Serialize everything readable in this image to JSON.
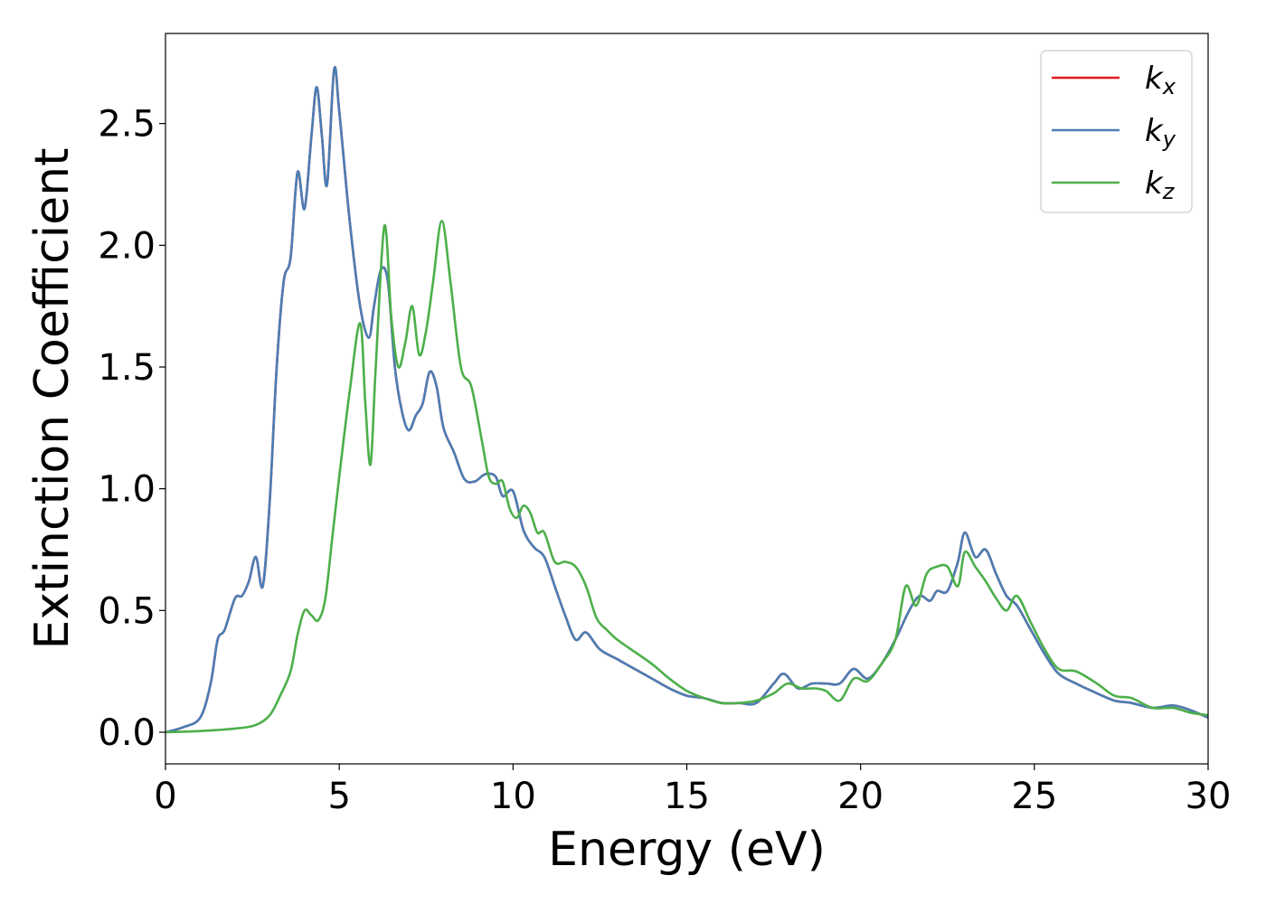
{
  "chart_data": {
    "type": "line",
    "title": "",
    "xlabel": "Energy (eV)",
    "ylabel": "Extinction Coefficient",
    "xlim": [
      0,
      30
    ],
    "ylim": [
      -0.13,
      2.87
    ],
    "xticks": [
      0,
      5,
      10,
      15,
      20,
      25,
      30
    ],
    "xtick_labels": [
      "0",
      "5",
      "10",
      "15",
      "20",
      "25",
      "30"
    ],
    "yticks": [
      0.0,
      0.5,
      1.0,
      1.5,
      2.0,
      2.5
    ],
    "ytick_labels": [
      "0.0",
      "0.5",
      "1.0",
      "1.5",
      "2.0",
      "2.5"
    ],
    "grid": false,
    "legend_position": "top-right",
    "series": [
      {
        "name": "k_x",
        "legend_main": "k",
        "legend_sub": "x",
        "color": "#e41a1c",
        "x": [
          0,
          0.5,
          1.0,
          1.3,
          1.5,
          1.7,
          2.0,
          2.2,
          2.4,
          2.6,
          2.8,
          3.0,
          3.2,
          3.4,
          3.6,
          3.8,
          4.0,
          4.2,
          4.35,
          4.5,
          4.65,
          4.85,
          5.0,
          5.3,
          5.6,
          5.85,
          6.0,
          6.2,
          6.4,
          6.6,
          6.8,
          7.0,
          7.2,
          7.4,
          7.6,
          7.8,
          8.0,
          8.3,
          8.6,
          8.9,
          9.2,
          9.5,
          9.7,
          10.0,
          10.3,
          10.6,
          10.9,
          11.2,
          11.5,
          11.8,
          12.1,
          12.5,
          13.0,
          13.5,
          14.0,
          14.5,
          15.0,
          15.5,
          16.0,
          16.5,
          17.0,
          17.5,
          17.8,
          18.2,
          18.6,
          19.0,
          19.4,
          19.8,
          20.2,
          20.6,
          21.0,
          21.4,
          21.7,
          22.0,
          22.2,
          22.5,
          22.8,
          23.0,
          23.3,
          23.6,
          23.9,
          24.2,
          24.5,
          24.9,
          25.3,
          25.7,
          26.2,
          26.8,
          27.3,
          27.8,
          28.4,
          29.0,
          29.5,
          30.0
        ],
        "values": [
          0.0,
          0.02,
          0.06,
          0.2,
          0.38,
          0.42,
          0.55,
          0.56,
          0.62,
          0.72,
          0.6,
          0.95,
          1.5,
          1.85,
          1.95,
          2.3,
          2.15,
          2.45,
          2.65,
          2.45,
          2.25,
          2.72,
          2.55,
          2.1,
          1.75,
          1.62,
          1.75,
          1.9,
          1.85,
          1.5,
          1.32,
          1.24,
          1.3,
          1.35,
          1.48,
          1.42,
          1.25,
          1.15,
          1.04,
          1.03,
          1.06,
          1.05,
          0.97,
          0.99,
          0.83,
          0.76,
          0.72,
          0.6,
          0.48,
          0.38,
          0.41,
          0.34,
          0.3,
          0.26,
          0.22,
          0.18,
          0.15,
          0.14,
          0.12,
          0.12,
          0.12,
          0.2,
          0.24,
          0.18,
          0.2,
          0.2,
          0.2,
          0.26,
          0.22,
          0.28,
          0.38,
          0.5,
          0.56,
          0.54,
          0.58,
          0.58,
          0.7,
          0.82,
          0.72,
          0.75,
          0.65,
          0.56,
          0.52,
          0.42,
          0.32,
          0.24,
          0.2,
          0.16,
          0.13,
          0.12,
          0.1,
          0.11,
          0.09,
          0.06
        ]
      },
      {
        "name": "k_y",
        "legend_main": "k",
        "legend_sub": "y",
        "color": "#4a7eb5",
        "x": [
          0,
          0.5,
          1.0,
          1.3,
          1.5,
          1.7,
          2.0,
          2.2,
          2.4,
          2.6,
          2.8,
          3.0,
          3.2,
          3.4,
          3.6,
          3.8,
          4.0,
          4.2,
          4.35,
          4.5,
          4.65,
          4.85,
          5.0,
          5.3,
          5.6,
          5.85,
          6.0,
          6.2,
          6.4,
          6.6,
          6.8,
          7.0,
          7.2,
          7.4,
          7.6,
          7.8,
          8.0,
          8.3,
          8.6,
          8.9,
          9.2,
          9.5,
          9.7,
          10.0,
          10.3,
          10.6,
          10.9,
          11.2,
          11.5,
          11.8,
          12.1,
          12.5,
          13.0,
          13.5,
          14.0,
          14.5,
          15.0,
          15.5,
          16.0,
          16.5,
          17.0,
          17.5,
          17.8,
          18.2,
          18.6,
          19.0,
          19.4,
          19.8,
          20.2,
          20.6,
          21.0,
          21.4,
          21.7,
          22.0,
          22.2,
          22.5,
          22.8,
          23.0,
          23.3,
          23.6,
          23.9,
          24.2,
          24.5,
          24.9,
          25.3,
          25.7,
          26.2,
          26.8,
          27.3,
          27.8,
          28.4,
          29.0,
          29.5,
          30.0
        ],
        "values": [
          0.0,
          0.02,
          0.06,
          0.2,
          0.38,
          0.42,
          0.55,
          0.56,
          0.62,
          0.72,
          0.6,
          0.95,
          1.5,
          1.85,
          1.95,
          2.3,
          2.15,
          2.45,
          2.65,
          2.45,
          2.25,
          2.72,
          2.55,
          2.1,
          1.75,
          1.62,
          1.75,
          1.9,
          1.85,
          1.5,
          1.32,
          1.24,
          1.3,
          1.35,
          1.48,
          1.42,
          1.25,
          1.15,
          1.04,
          1.03,
          1.06,
          1.05,
          0.97,
          0.99,
          0.83,
          0.76,
          0.72,
          0.6,
          0.48,
          0.38,
          0.41,
          0.34,
          0.3,
          0.26,
          0.22,
          0.18,
          0.15,
          0.14,
          0.12,
          0.12,
          0.12,
          0.2,
          0.24,
          0.18,
          0.2,
          0.2,
          0.2,
          0.26,
          0.22,
          0.28,
          0.38,
          0.5,
          0.56,
          0.54,
          0.58,
          0.58,
          0.7,
          0.82,
          0.72,
          0.75,
          0.65,
          0.56,
          0.52,
          0.42,
          0.32,
          0.24,
          0.2,
          0.16,
          0.13,
          0.12,
          0.1,
          0.11,
          0.09,
          0.06
        ]
      },
      {
        "name": "k_z",
        "legend_main": "k",
        "legend_sub": "z",
        "color": "#4daf4a",
        "x": [
          0,
          1.0,
          2.0,
          2.6,
          3.0,
          3.3,
          3.6,
          3.8,
          4.0,
          4.2,
          4.4,
          4.6,
          4.8,
          5.0,
          5.3,
          5.6,
          5.75,
          5.9,
          6.05,
          6.3,
          6.5,
          6.7,
          6.9,
          7.1,
          7.3,
          7.5,
          7.7,
          7.95,
          8.2,
          8.5,
          8.8,
          9.1,
          9.3,
          9.5,
          9.7,
          9.9,
          10.1,
          10.3,
          10.5,
          10.7,
          10.9,
          11.2,
          11.5,
          11.8,
          12.1,
          12.4,
          12.7,
          13.0,
          13.5,
          14.0,
          14.5,
          15.0,
          15.5,
          16.0,
          16.5,
          17.0,
          17.5,
          17.9,
          18.3,
          18.7,
          19.0,
          19.4,
          19.8,
          20.2,
          20.6,
          21.0,
          21.3,
          21.6,
          21.9,
          22.2,
          22.5,
          22.8,
          23.0,
          23.3,
          23.6,
          23.9,
          24.2,
          24.5,
          24.9,
          25.3,
          25.7,
          26.2,
          26.8,
          27.3,
          27.8,
          28.4,
          29.0,
          29.5,
          30.0
        ],
        "values": [
          0.0,
          0.005,
          0.015,
          0.03,
          0.07,
          0.15,
          0.25,
          0.4,
          0.5,
          0.48,
          0.46,
          0.55,
          0.8,
          1.05,
          1.4,
          1.68,
          1.35,
          1.1,
          1.5,
          2.08,
          1.7,
          1.5,
          1.6,
          1.75,
          1.55,
          1.65,
          1.85,
          2.1,
          1.85,
          1.5,
          1.42,
          1.2,
          1.05,
          1.02,
          1.03,
          0.92,
          0.88,
          0.93,
          0.9,
          0.82,
          0.82,
          0.7,
          0.7,
          0.68,
          0.6,
          0.47,
          0.42,
          0.38,
          0.33,
          0.28,
          0.22,
          0.17,
          0.14,
          0.12,
          0.12,
          0.13,
          0.16,
          0.2,
          0.18,
          0.18,
          0.17,
          0.13,
          0.22,
          0.21,
          0.28,
          0.38,
          0.6,
          0.52,
          0.65,
          0.68,
          0.68,
          0.6,
          0.74,
          0.68,
          0.62,
          0.55,
          0.5,
          0.56,
          0.45,
          0.34,
          0.26,
          0.25,
          0.2,
          0.15,
          0.14,
          0.1,
          0.1,
          0.08,
          0.07
        ]
      }
    ]
  }
}
